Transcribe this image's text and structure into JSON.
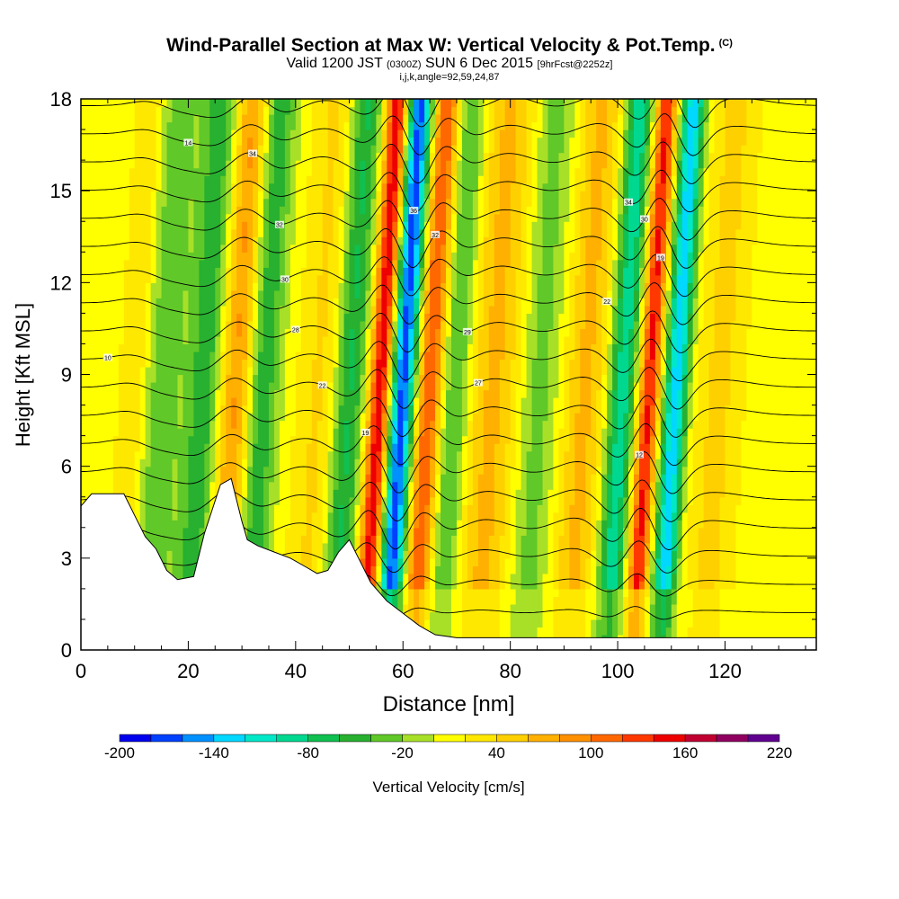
{
  "title": {
    "main": "Wind-Parallel Section at Max W: Vertical Velocity & Pot.Temp.",
    "copyright": "(C)",
    "valid_prefix": "Valid 1200 JST",
    "valid_utc": "(0300Z)",
    "valid_date": "SUN 6 Dec 2015",
    "forecast": "[9hrFcst@2252z]",
    "params": "i,j,k,angle=92,59,24,87"
  },
  "chart_data": {
    "type": "heatmap",
    "xlabel": "Distance [nm]",
    "ylabel": "Height [Kft MSL]",
    "xlim": [
      0,
      137
    ],
    "ylim": [
      0,
      18
    ],
    "x_ticks": [
      "0",
      "20",
      "40",
      "60",
      "80",
      "100",
      "120"
    ],
    "x_tick_values": [
      0,
      20,
      40,
      60,
      80,
      100,
      120
    ],
    "y_ticks": [
      "0",
      "3",
      "6",
      "9",
      "12",
      "15",
      "18"
    ],
    "y_tick_values": [
      0,
      3,
      6,
      9,
      12,
      15,
      18
    ],
    "colorbar": {
      "label": "Vertical Velocity [cm/s]",
      "min": -200,
      "max": 220,
      "step": 20,
      "tick_labels": [
        "-200",
        "-140",
        "-80",
        "-20",
        "40",
        "100",
        "160",
        "220"
      ],
      "tick_values": [
        -200,
        -140,
        -80,
        -20,
        40,
        100,
        160,
        220
      ],
      "colors": [
        "#0000ee",
        "#0040ff",
        "#0090ff",
        "#00d8ff",
        "#00e8c8",
        "#00d890",
        "#10c050",
        "#28b030",
        "#60c828",
        "#a8e028",
        "#ffff00",
        "#ffe800",
        "#ffd000",
        "#ffb000",
        "#ff9000",
        "#ff6800",
        "#ff3800",
        "#ee0000",
        "#c00030",
        "#900060",
        "#600090"
      ]
    },
    "velocity_features": [
      {
        "x": 9,
        "w": 3,
        "value": 40
      },
      {
        "x": 14,
        "w": 4,
        "value": -40
      },
      {
        "x": 22,
        "w": 3,
        "value": -60
      },
      {
        "x": 28,
        "w": 3,
        "value": 80
      },
      {
        "x": 33,
        "w": 3,
        "value": -60
      },
      {
        "x": 44,
        "w": 5,
        "value": 40
      },
      {
        "x": 49,
        "w": 3,
        "value": -80
      },
      {
        "x": 55,
        "w": 2.2,
        "value": 160
      },
      {
        "x": 59,
        "w": 2.5,
        "value": -180
      },
      {
        "x": 64,
        "w": 2.5,
        "value": 120
      },
      {
        "x": 69,
        "w": 3,
        "value": -60
      },
      {
        "x": 76,
        "w": 6,
        "value": 60
      },
      {
        "x": 84,
        "w": 4,
        "value": -40
      },
      {
        "x": 93,
        "w": 4,
        "value": 60
      },
      {
        "x": 100,
        "w": 2.5,
        "value": -100
      },
      {
        "x": 105,
        "w": 2,
        "value": 140
      },
      {
        "x": 110,
        "w": 2.2,
        "value": -140
      },
      {
        "x": 118,
        "w": 5,
        "value": 40
      }
    ],
    "terrain_height_kft": [
      [
        0,
        4.7
      ],
      [
        2,
        5.1
      ],
      [
        8,
        5.1
      ],
      [
        10,
        4.4
      ],
      [
        12,
        3.7
      ],
      [
        14,
        3.3
      ],
      [
        16,
        2.6
      ],
      [
        18,
        2.3
      ],
      [
        21,
        2.4
      ],
      [
        23,
        3.8
      ],
      [
        26,
        5.4
      ],
      [
        28,
        5.6
      ],
      [
        30,
        4.2
      ],
      [
        31,
        3.6
      ],
      [
        33,
        3.4
      ],
      [
        36,
        3.2
      ],
      [
        39,
        3.0
      ],
      [
        42,
        2.7
      ],
      [
        44,
        2.5
      ],
      [
        46,
        2.6
      ],
      [
        48,
        3.2
      ],
      [
        50,
        3.6
      ],
      [
        52,
        2.9
      ],
      [
        54,
        2.2
      ],
      [
        57,
        1.6
      ],
      [
        60,
        1.2
      ],
      [
        63,
        0.8
      ],
      [
        66,
        0.5
      ],
      [
        70,
        0.4
      ],
      [
        137,
        0.4
      ]
    ],
    "isentrope_levels": [
      -1,
      0,
      1,
      2,
      3,
      4,
      5,
      6,
      7,
      8,
      9,
      10,
      11,
      12,
      13,
      14,
      15,
      16,
      17,
      18
    ],
    "isentrope_labels": [
      {
        "x": 5,
        "level": 9,
        "text": "10"
      },
      {
        "x": 20,
        "level": 17,
        "text": "14"
      },
      {
        "x": 32,
        "level": 16,
        "text": "34"
      },
      {
        "x": 37,
        "level": 14,
        "text": "32"
      },
      {
        "x": 38,
        "level": 12,
        "text": "30"
      },
      {
        "x": 40,
        "level": 10,
        "text": "28"
      },
      {
        "x": 45,
        "level": 8,
        "text": "22"
      },
      {
        "x": 53,
        "level": 6,
        "text": "19"
      },
      {
        "x": 62,
        "level": 15,
        "text": "36"
      },
      {
        "x": 66,
        "level": 13,
        "text": "32"
      },
      {
        "x": 72,
        "level": 10,
        "text": "29"
      },
      {
        "x": 74,
        "level": 8,
        "text": "27"
      },
      {
        "x": 98,
        "level": 11,
        "text": "22"
      },
      {
        "x": 102,
        "level": 15,
        "text": "34"
      },
      {
        "x": 105,
        "level": 14,
        "text": "30"
      },
      {
        "x": 108,
        "level": 12,
        "text": "19"
      },
      {
        "x": 104,
        "level": 5,
        "text": "12"
      }
    ]
  }
}
